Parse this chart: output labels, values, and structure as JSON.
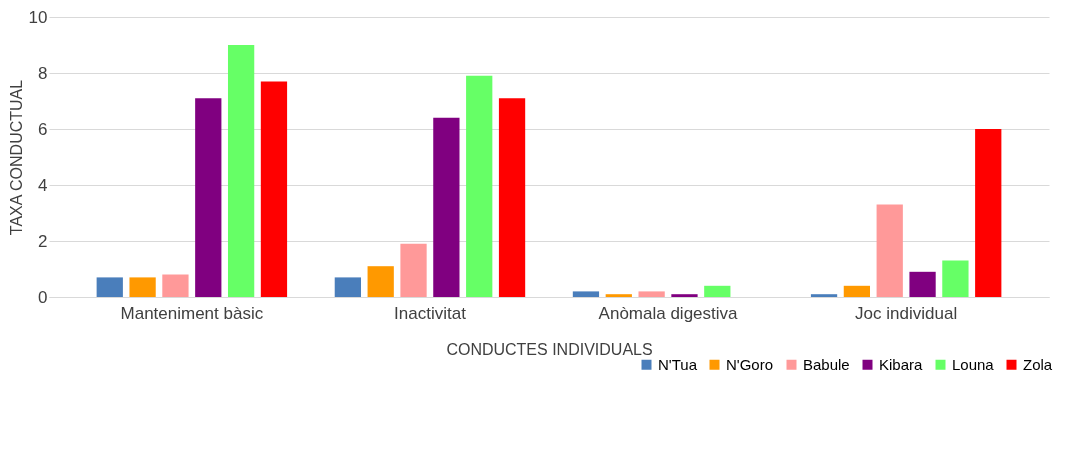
{
  "chart_data": {
    "type": "bar",
    "xlabel": "CONDUCTES INDIVIDUALS",
    "ylabel": "TAXA CONDUCTUAL",
    "categories": [
      "Manteniment bàsic",
      "Inactivitat",
      "Anòmala digestiva",
      "Joc individual"
    ],
    "series": [
      {
        "name": "N'Tua",
        "color": "#4a7ebb",
        "values": [
          0.7,
          0.7,
          0.2,
          0.1
        ]
      },
      {
        "name": "N'Goro",
        "color": "#ff9900",
        "values": [
          0.7,
          1.1,
          0.1,
          0.4
        ]
      },
      {
        "name": "Babule",
        "color": "#ff9999",
        "values": [
          0.8,
          1.9,
          0.2,
          3.3
        ]
      },
      {
        "name": "Kibara",
        "color": "#800080",
        "values": [
          7.1,
          6.4,
          0.1,
          0.9
        ]
      },
      {
        "name": "Louna",
        "color": "#66ff66",
        "values": [
          9.0,
          7.9,
          0.4,
          1.3
        ]
      },
      {
        "name": "Zola",
        "color": "#ff0000",
        "values": [
          7.7,
          7.1,
          0,
          6.0
        ]
      }
    ],
    "ylim": [
      0,
      10
    ],
    "yticks": [
      0,
      2,
      4,
      6,
      8,
      10
    ],
    "grid": "y",
    "legend": "bottom right"
  }
}
